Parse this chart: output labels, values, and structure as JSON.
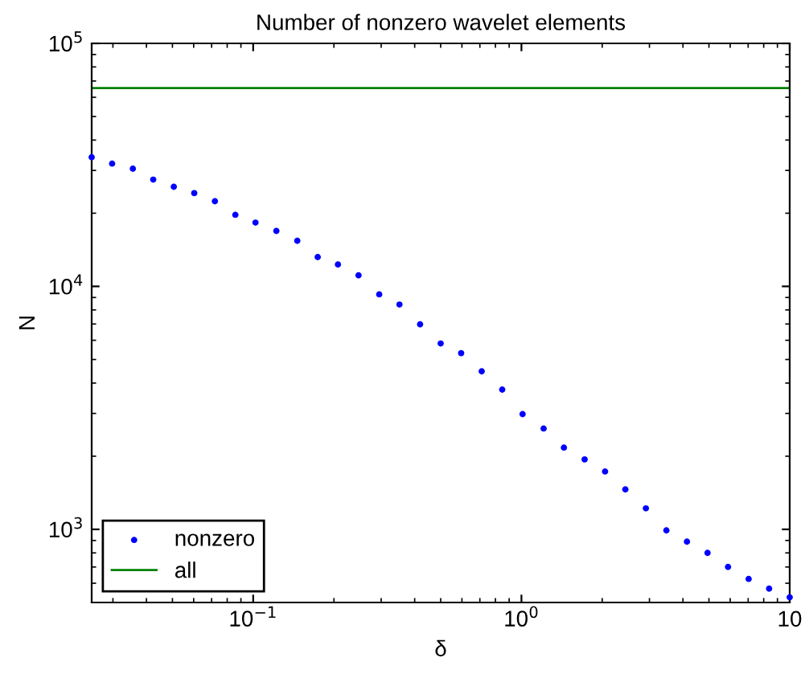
{
  "chart_data": {
    "type": "scatter",
    "title": "Number of nonzero wavelet elements",
    "xlabel": "δ",
    "ylabel": "N",
    "log": "xy",
    "xlim": [
      0.025,
      10
    ],
    "ylim": [
      500,
      100000
    ],
    "xticks": [
      {
        "value": 0.1,
        "label": "10$^{−1}$"
      },
      {
        "value": 1,
        "label": "10$^{0}$"
      },
      {
        "value": 10,
        "label": "10"
      }
    ],
    "yticks": [
      {
        "value": 1000,
        "label": "10$^{3}$"
      },
      {
        "value": 10000,
        "label": "10$^{4}$"
      },
      {
        "value": 100000,
        "label": "10$^{5}$"
      }
    ],
    "grid": false,
    "legend": "bottom left",
    "series": [
      {
        "name": "nonzero",
        "marker": "circle",
        "color": "#0000ff",
        "x": [
          0.025,
          0.0298,
          0.0356,
          0.0424,
          0.0506,
          0.0603,
          0.072,
          0.0858,
          0.102,
          0.122,
          0.146,
          0.174,
          0.207,
          0.247,
          0.295,
          0.351,
          0.419,
          0.5,
          0.596,
          0.711,
          0.848,
          1.01,
          1.21,
          1.44,
          1.72,
          2.05,
          2.44,
          2.91,
          3.47,
          4.14,
          4.94,
          5.89,
          7.03,
          8.38,
          10
        ],
        "values": [
          34000,
          32000,
          30500,
          27500,
          25700,
          24200,
          22400,
          19700,
          18300,
          16900,
          15400,
          13200,
          12300,
          11100,
          9270,
          8420,
          6980,
          5820,
          5310,
          4470,
          3760,
          2980,
          2600,
          2170,
          1940,
          1730,
          1460,
          1220,
          990,
          890,
          800,
          700,
          625,
          570,
          525
        ]
      },
      {
        "name": "all",
        "type": "line",
        "marker": "none",
        "line_style": "solid",
        "color": "#008000",
        "x": [
          0.025,
          10
        ],
        "values": [
          65500,
          65500
        ]
      }
    ]
  }
}
